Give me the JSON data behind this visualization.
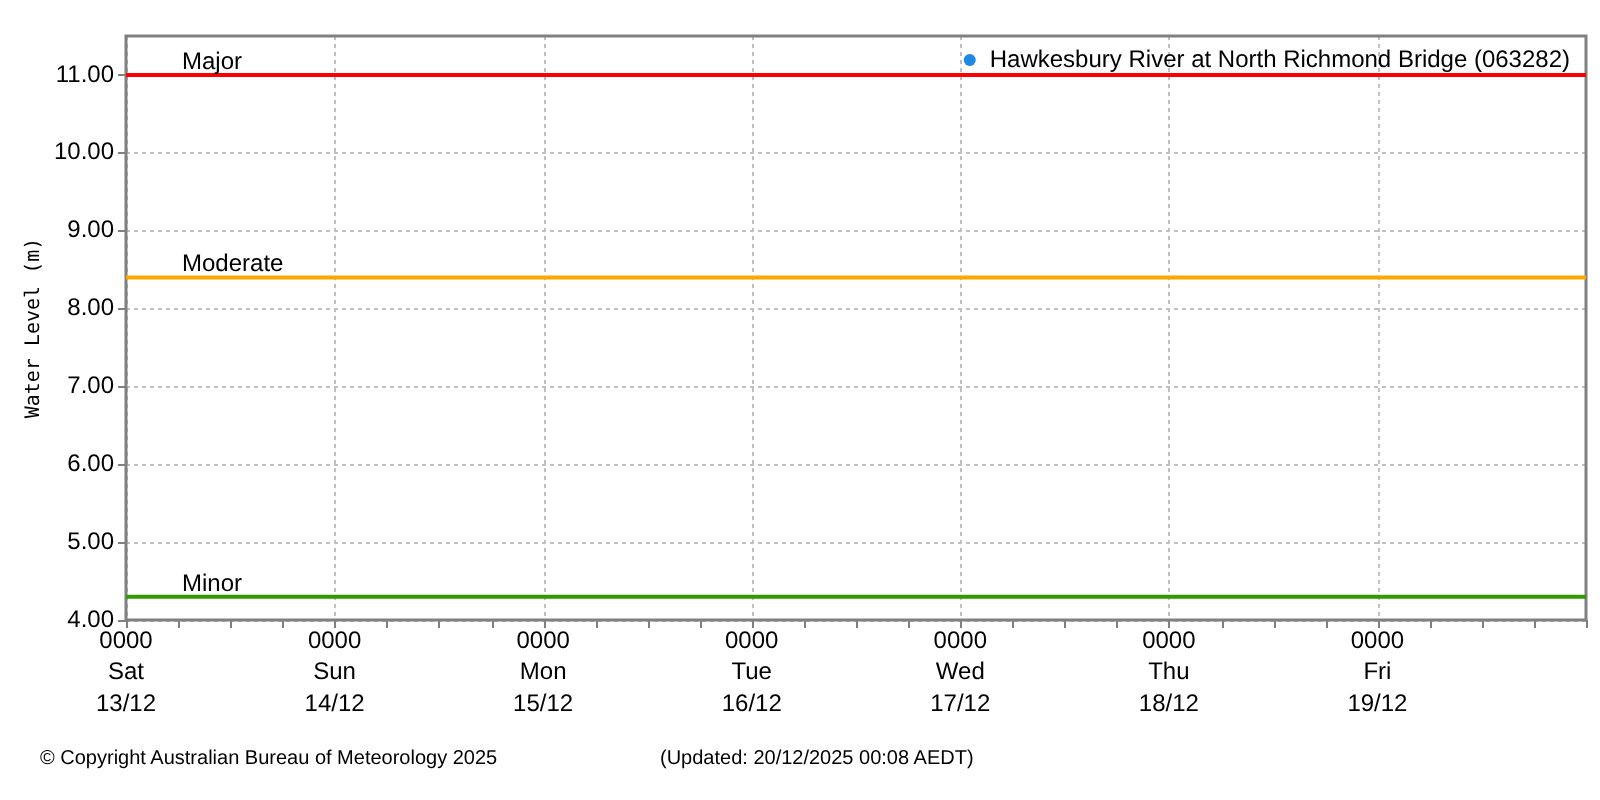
{
  "chart_data": {
    "type": "scatter",
    "ylabel": "Water Level (m)",
    "categories": [
      "0000\nSat\n13/12",
      null,
      null,
      null,
      "0000\nSun\n14/12",
      null,
      null,
      null,
      "0000\nMon\n15/12",
      null,
      null,
      null,
      "0000\nTue\n16/12",
      null,
      null,
      null,
      "0000\nWed\n17/12",
      null,
      null,
      null,
      "0000\nThu\n18/12",
      null,
      null,
      null,
      "0000\nFri\n19/12",
      null,
      null,
      null,
      null
    ],
    "series": [
      {
        "name": "Hawkesbury River at North Richmond Bridge (063282)",
        "color": "#1e88e5",
        "values": [
          null,
          null,
          null,
          null,
          null,
          null,
          null,
          null,
          null,
          null,
          null,
          null,
          null,
          null,
          null,
          null,
          null,
          null,
          null,
          null,
          null,
          null,
          null,
          null,
          null,
          null,
          null,
          null,
          null
        ]
      }
    ],
    "ylim": [
      4,
      11.5
    ],
    "yticks": [
      {
        "value": 4,
        "label": "4.00"
      },
      {
        "value": 5,
        "label": "5.00"
      },
      {
        "value": 6,
        "label": "6.00"
      },
      {
        "value": 7,
        "label": "7.00"
      },
      {
        "value": 8,
        "label": "8.00"
      },
      {
        "value": 9,
        "label": "9.00"
      },
      {
        "value": 10,
        "label": "10.00"
      },
      {
        "value": 11,
        "label": "11.00"
      }
    ],
    "ref_lines": [
      {
        "axis": "y",
        "value": 11,
        "label": "Major",
        "color": "#ff0000"
      },
      {
        "axis": "y",
        "value": 8.4,
        "label": "Moderate",
        "color": "#ffa500"
      },
      {
        "axis": "y",
        "value": 4.3,
        "label": "Minor",
        "color": "#339900"
      }
    ],
    "grid": true,
    "legend": "top right",
    "marker": "circle",
    "annotations": [
      "© Copyright Australian Bureau of Meteorology 2025",
      "(Updated: 20/12/2025 00:08 AEDT)"
    ]
  }
}
